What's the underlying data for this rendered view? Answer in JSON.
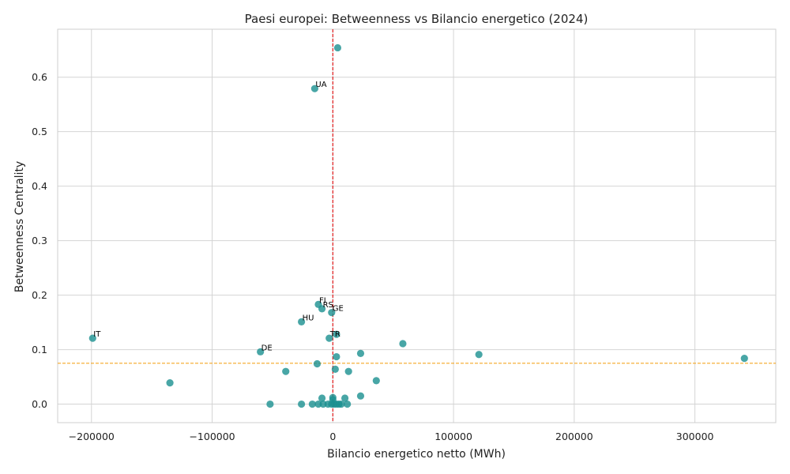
{
  "chart_data": {
    "type": "scatter",
    "title": "Paesi europei: Betweenness vs Bilancio energetico (2024)",
    "xlabel": "Bilancio energetico netto (MWh)",
    "ylabel": "Betweenness Centrality",
    "xlim": [
      -228000,
      367000
    ],
    "ylim": [
      -0.034,
      0.688
    ],
    "xticks": [
      -200000,
      -100000,
      0,
      100000,
      200000,
      300000
    ],
    "xtick_labels": [
      "−200000",
      "−100000",
      "0",
      "100000",
      "200000",
      "300000"
    ],
    "yticks": [
      0.0,
      0.1,
      0.2,
      0.3,
      0.4,
      0.5,
      0.6
    ],
    "ytick_labels": [
      "0.0",
      "0.1",
      "0.2",
      "0.3",
      "0.4",
      "0.5",
      "0.6"
    ],
    "grid": true,
    "point_color": "#1a9090",
    "reference_lines": [
      {
        "orientation": "vertical",
        "value": 0,
        "color": "#e31a1c",
        "style": "dashed"
      },
      {
        "orientation": "horizontal",
        "value": 0.075,
        "color": "#f5a623",
        "style": "dashed"
      }
    ],
    "points": [
      {
        "x": 4000,
        "y": 0.654,
        "label": ""
      },
      {
        "x": -15000,
        "y": 0.579,
        "label": "UA"
      },
      {
        "x": -12000,
        "y": 0.183,
        "label": "FI"
      },
      {
        "x": -9000,
        "y": 0.175,
        "label": "RS"
      },
      {
        "x": -1000,
        "y": 0.168,
        "label": "GE"
      },
      {
        "x": -26000,
        "y": 0.151,
        "label": "HU"
      },
      {
        "x": 3000,
        "y": 0.128,
        "label": ""
      },
      {
        "x": -3000,
        "y": 0.121,
        "label": "TR"
      },
      {
        "x": -199000,
        "y": 0.121,
        "label": "IT"
      },
      {
        "x": 58000,
        "y": 0.111,
        "label": ""
      },
      {
        "x": -60000,
        "y": 0.096,
        "label": "DE"
      },
      {
        "x": 23000,
        "y": 0.093,
        "label": ""
      },
      {
        "x": 121000,
        "y": 0.091,
        "label": ""
      },
      {
        "x": 3000,
        "y": 0.087,
        "label": ""
      },
      {
        "x": 341000,
        "y": 0.084,
        "label": ""
      },
      {
        "x": -13000,
        "y": 0.074,
        "label": ""
      },
      {
        "x": 2000,
        "y": 0.064,
        "label": ""
      },
      {
        "x": -39000,
        "y": 0.06,
        "label": ""
      },
      {
        "x": 13000,
        "y": 0.06,
        "label": ""
      },
      {
        "x": 36000,
        "y": 0.043,
        "label": ""
      },
      {
        "x": -135000,
        "y": 0.039,
        "label": ""
      },
      {
        "x": 23000,
        "y": 0.015,
        "label": ""
      },
      {
        "x": -9000,
        "y": 0.011,
        "label": ""
      },
      {
        "x": 0,
        "y": 0.012,
        "label": ""
      },
      {
        "x": 0,
        "y": 0.008,
        "label": ""
      },
      {
        "x": 10000,
        "y": 0.011,
        "label": ""
      },
      {
        "x": -52000,
        "y": 0.0,
        "label": ""
      },
      {
        "x": -26000,
        "y": 0.0,
        "label": ""
      },
      {
        "x": -17000,
        "y": 0.0,
        "label": ""
      },
      {
        "x": -12000,
        "y": 0.0,
        "label": ""
      },
      {
        "x": -8000,
        "y": 0.0,
        "label": ""
      },
      {
        "x": -4000,
        "y": 0.0,
        "label": ""
      },
      {
        "x": -1000,
        "y": 0.0,
        "label": ""
      },
      {
        "x": 1000,
        "y": 0.0,
        "label": ""
      },
      {
        "x": 3000,
        "y": 0.0,
        "label": ""
      },
      {
        "x": 5000,
        "y": 0.0,
        "label": ""
      },
      {
        "x": 7000,
        "y": 0.0,
        "label": ""
      },
      {
        "x": 12000,
        "y": 0.0,
        "label": ""
      }
    ]
  }
}
